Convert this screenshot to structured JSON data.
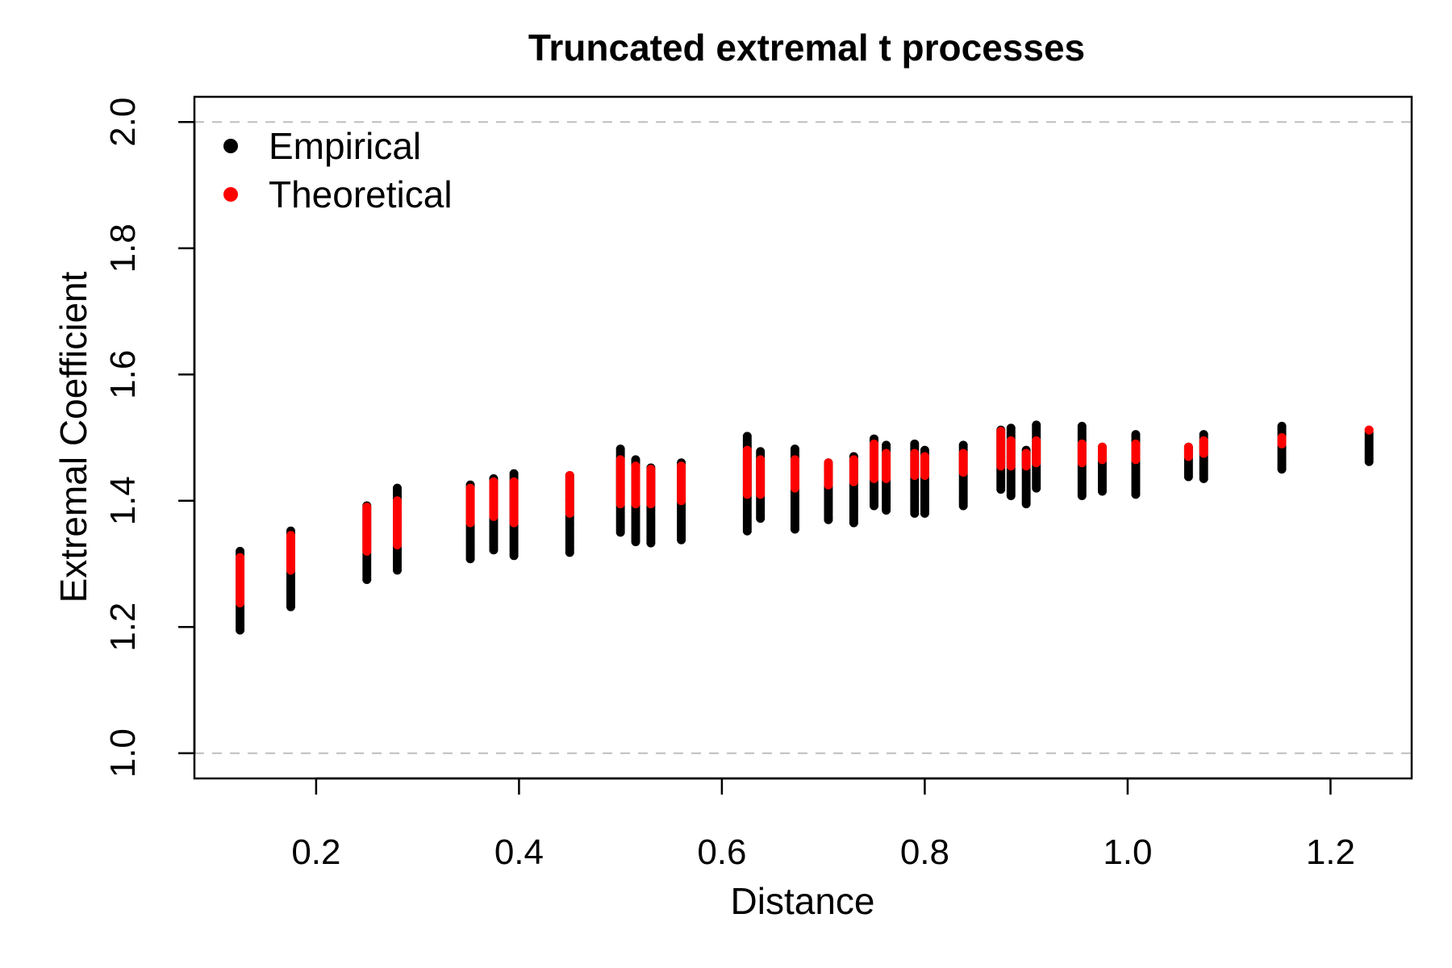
{
  "chart_data": {
    "type": "scatter",
    "title": "Truncated extremal t processes",
    "xlabel": "Distance",
    "ylabel": "Extremal Coefficient",
    "xlim": [
      0.08,
      1.28
    ],
    "ylim": [
      0.96,
      2.04
    ],
    "xticks": [
      "0.2",
      "0.4",
      "0.6",
      "0.8",
      "1.0",
      "1.2"
    ],
    "yticks": [
      "1.0",
      "1.2",
      "1.4",
      "1.6",
      "1.8",
      "2.0"
    ],
    "reference_lines": [
      1.0,
      2.0
    ],
    "reference_line_color": "#bebebe",
    "grid": false,
    "legend_position": "top-left",
    "groups": [
      {
        "x": 0.125,
        "empirical": [
          1.195,
          1.32
        ],
        "theoretical": [
          1.238,
          1.31
        ]
      },
      {
        "x": 0.175,
        "empirical": [
          1.232,
          1.352
        ],
        "theoretical": [
          1.29,
          1.345
        ]
      },
      {
        "x": 0.25,
        "empirical": [
          1.275,
          1.392
        ],
        "theoretical": [
          1.32,
          1.39
        ]
      },
      {
        "x": 0.28,
        "empirical": [
          1.29,
          1.42
        ],
        "theoretical": [
          1.33,
          1.4
        ]
      },
      {
        "x": 0.352,
        "empirical": [
          1.308,
          1.425
        ],
        "theoretical": [
          1.365,
          1.42
        ]
      },
      {
        "x": 0.375,
        "empirical": [
          1.322,
          1.435
        ],
        "theoretical": [
          1.375,
          1.43
        ]
      },
      {
        "x": 0.395,
        "empirical": [
          1.313,
          1.443
        ],
        "theoretical": [
          1.365,
          1.43
        ]
      },
      {
        "x": 0.45,
        "empirical": [
          1.318,
          1.44
        ],
        "theoretical": [
          1.38,
          1.44
        ]
      },
      {
        "x": 0.5,
        "empirical": [
          1.35,
          1.482
        ],
        "theoretical": [
          1.395,
          1.465
        ]
      },
      {
        "x": 0.515,
        "empirical": [
          1.335,
          1.465
        ],
        "theoretical": [
          1.395,
          1.455
        ]
      },
      {
        "x": 0.53,
        "empirical": [
          1.333,
          1.452
        ],
        "theoretical": [
          1.395,
          1.45
        ]
      },
      {
        "x": 0.56,
        "empirical": [
          1.338,
          1.46
        ],
        "theoretical": [
          1.4,
          1.455
        ]
      },
      {
        "x": 0.625,
        "empirical": [
          1.352,
          1.502
        ],
        "theoretical": [
          1.41,
          1.48
        ]
      },
      {
        "x": 0.638,
        "empirical": [
          1.372,
          1.478
        ],
        "theoretical": [
          1.41,
          1.465
        ]
      },
      {
        "x": 0.672,
        "empirical": [
          1.355,
          1.482
        ],
        "theoretical": [
          1.42,
          1.465
        ]
      },
      {
        "x": 0.705,
        "empirical": [
          1.37,
          1.46
        ],
        "theoretical": [
          1.425,
          1.46
        ]
      },
      {
        "x": 0.73,
        "empirical": [
          1.365,
          1.47
        ],
        "theoretical": [
          1.43,
          1.465
        ]
      },
      {
        "x": 0.75,
        "empirical": [
          1.392,
          1.498
        ],
        "theoretical": [
          1.435,
          1.49
        ]
      },
      {
        "x": 0.762,
        "empirical": [
          1.385,
          1.488
        ],
        "theoretical": [
          1.435,
          1.475
        ]
      },
      {
        "x": 0.79,
        "empirical": [
          1.38,
          1.49
        ],
        "theoretical": [
          1.44,
          1.475
        ]
      },
      {
        "x": 0.8,
        "empirical": [
          1.38,
          1.48
        ],
        "theoretical": [
          1.44,
          1.47
        ]
      },
      {
        "x": 0.838,
        "empirical": [
          1.392,
          1.488
        ],
        "theoretical": [
          1.445,
          1.475
        ]
      },
      {
        "x": 0.875,
        "empirical": [
          1.418,
          1.512
        ],
        "theoretical": [
          1.455,
          1.51
        ]
      },
      {
        "x": 0.885,
        "empirical": [
          1.408,
          1.515
        ],
        "theoretical": [
          1.455,
          1.495
        ]
      },
      {
        "x": 0.9,
        "empirical": [
          1.395,
          1.48
        ],
        "theoretical": [
          1.455,
          1.475
        ]
      },
      {
        "x": 0.91,
        "empirical": [
          1.42,
          1.52
        ],
        "theoretical": [
          1.46,
          1.495
        ]
      },
      {
        "x": 0.955,
        "empirical": [
          1.408,
          1.518
        ],
        "theoretical": [
          1.46,
          1.49
        ]
      },
      {
        "x": 0.975,
        "empirical": [
          1.415,
          1.485
        ],
        "theoretical": [
          1.465,
          1.485
        ]
      },
      {
        "x": 1.008,
        "empirical": [
          1.41,
          1.505
        ],
        "theoretical": [
          1.465,
          1.49
        ]
      },
      {
        "x": 1.06,
        "empirical": [
          1.438,
          1.485
        ],
        "theoretical": [
          1.47,
          1.485
        ]
      },
      {
        "x": 1.075,
        "empirical": [
          1.435,
          1.505
        ],
        "theoretical": [
          1.475,
          1.495
        ]
      },
      {
        "x": 1.152,
        "empirical": [
          1.45,
          1.518
        ],
        "theoretical": [
          1.49,
          1.5
        ]
      },
      {
        "x": 1.238,
        "empirical": [
          1.462,
          1.508
        ],
        "theoretical": [
          1.512,
          1.512
        ]
      }
    ],
    "series": [
      {
        "name": "Empirical",
        "color": "#000000"
      },
      {
        "name": "Theoretical",
        "color": "#ff0000"
      }
    ]
  }
}
